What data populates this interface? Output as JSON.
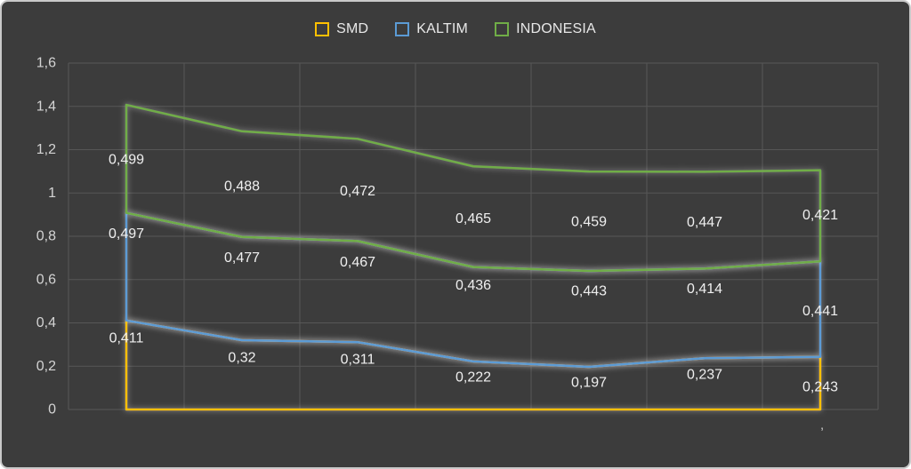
{
  "chart_data": {
    "type": "area",
    "stacked": true,
    "fill": "none",
    "title": "",
    "categories": [
      "",
      "",
      "",
      "",
      "",
      "",
      ""
    ],
    "x_tick_labels": [
      "",
      "",
      "",
      "",
      "",
      "",
      "’"
    ],
    "series": [
      {
        "name": "SMD",
        "color": "#FFC000",
        "values": [
          0.411,
          0.32,
          0.311,
          0.222,
          0.197,
          0.237,
          0.243
        ]
      },
      {
        "name": "KALTIM",
        "color": "#5B9BD5",
        "values": [
          0.497,
          0.477,
          0.467,
          0.436,
          0.443,
          0.414,
          0.441
        ]
      },
      {
        "name": "INDONESIA",
        "color": "#70AD47",
        "values": [
          0.499,
          0.488,
          0.472,
          0.465,
          0.459,
          0.447,
          0.421
        ]
      }
    ],
    "y_ticks": [
      "1,6",
      "1,4",
      "1,2",
      "1",
      "0,8",
      "0,6",
      "0,4",
      "0,2",
      "0"
    ],
    "ylim": [
      0,
      1.6
    ],
    "grid": true,
    "legend_position": "top",
    "number_format": "decimal-comma",
    "colors": {
      "background": "#3c3c3c",
      "gridline": "#575757",
      "axis_text": "#d4d4d4",
      "label_text": "#efefef",
      "frame_border": "#c9c9c9",
      "glow": "#ffffff"
    }
  }
}
